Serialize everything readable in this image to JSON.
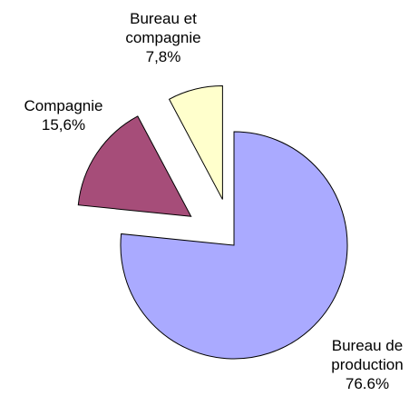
{
  "chart_data": {
    "type": "pie",
    "categories": [
      "Bureau de production",
      "Compagnie",
      "Bureau et compagnie"
    ],
    "values": [
      76.6,
      15.6,
      7.8
    ],
    "value_labels": [
      "76.6%",
      "15,6%",
      "7,8%"
    ],
    "colors": [
      "#aaaaff",
      "#a64d79",
      "#ffffcc"
    ]
  }
}
